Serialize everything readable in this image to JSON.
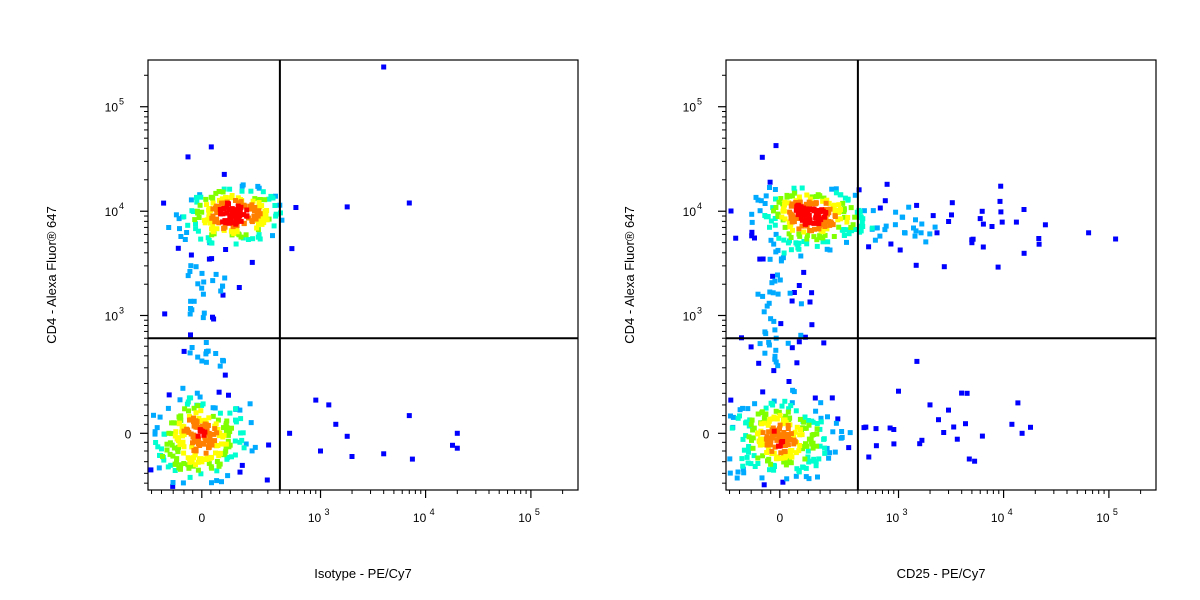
{
  "chart_data": [
    {
      "type": "scatter",
      "xlabel": "Isotype - PE/Cy7",
      "ylabel": "CD4 - Alexa Fluor® 647",
      "x_scale": "biexponential",
      "y_scale": "biexponential",
      "x_ticks": [
        {
          "value": 0,
          "base": "0",
          "exp": ""
        },
        {
          "value": 1000,
          "base": "10",
          "exp": "3"
        },
        {
          "value": 10000,
          "base": "10",
          "exp": "4"
        },
        {
          "value": 100000,
          "base": "10",
          "exp": "5"
        }
      ],
      "y_ticks": [
        {
          "value": 0,
          "base": "0",
          "exp": ""
        },
        {
          "value": 1000,
          "base": "10",
          "exp": "3"
        },
        {
          "value": 10000,
          "base": "10",
          "exp": "4"
        },
        {
          "value": 100000,
          "base": "10",
          "exp": "5"
        }
      ],
      "quadrant_gate": {
        "x": 400,
        "y": 600
      },
      "populations": [
        {
          "name": "CD4-",
          "x_center": -10,
          "y_center": -20,
          "count": 260,
          "x_spread": 0.55,
          "y_spread": 0.45
        },
        {
          "name": "CD4+",
          "x_center": 120,
          "y_center": 9000,
          "count": 230,
          "x_spread": 0.55,
          "y_spread": 0.28
        },
        {
          "name": "stem",
          "x_center": 0,
          "y_center": 900,
          "count": 80,
          "x_spread": 0.35,
          "y_spread": 1.6
        }
      ],
      "outliers": [
        [
          1800,
          11000
        ],
        [
          7000,
          12000
        ],
        [
          4000,
          240000
        ],
        [
          280,
          10000
        ],
        [
          900,
          120
        ],
        [
          1200,
          100
        ],
        [
          1400,
          30
        ],
        [
          1800,
          -10
        ],
        [
          1000,
          -60
        ],
        [
          2000,
          -80
        ],
        [
          4000,
          -70
        ],
        [
          7000,
          60
        ],
        [
          7500,
          -90
        ],
        [
          18000,
          -40
        ],
        [
          20000,
          0
        ],
        [
          20000,
          -50
        ],
        [
          500,
          0
        ]
      ],
      "colors": [
        "#0000ff",
        "#00aaff",
        "#00ffd0",
        "#7fff00",
        "#ffff00",
        "#ff8000",
        "#ff0000"
      ]
    },
    {
      "type": "scatter",
      "xlabel": "CD25 - PE/Cy7",
      "ylabel": "CD4 - Alexa Fluor® 647",
      "x_scale": "biexponential",
      "y_scale": "biexponential",
      "x_ticks": [
        {
          "value": 0,
          "base": "0",
          "exp": ""
        },
        {
          "value": 1000,
          "base": "10",
          "exp": "3"
        },
        {
          "value": 10000,
          "base": "10",
          "exp": "4"
        },
        {
          "value": 100000,
          "base": "10",
          "exp": "5"
        }
      ],
      "y_ticks": [
        {
          "value": 0,
          "base": "0",
          "exp": ""
        },
        {
          "value": 1000,
          "base": "10",
          "exp": "3"
        },
        {
          "value": 10000,
          "base": "10",
          "exp": "4"
        },
        {
          "value": 100000,
          "base": "10",
          "exp": "5"
        }
      ],
      "quadrant_gate": {
        "x": 400,
        "y": 600
      },
      "populations": [
        {
          "name": "CD4-",
          "x_center": -10,
          "y_center": -20,
          "count": 280,
          "x_spread": 0.6,
          "y_spread": 0.45
        },
        {
          "name": "CD4+",
          "x_center": 120,
          "y_center": 9000,
          "count": 260,
          "x_spread": 0.6,
          "y_spread": 0.28
        },
        {
          "name": "stem",
          "x_center": 0,
          "y_center": 900,
          "count": 90,
          "x_spread": 0.35,
          "y_spread": 1.6
        },
        {
          "name": "CD25+CD4+",
          "x_center": 1500,
          "y_center": 7000,
          "count": 70,
          "x_spread": 1.6,
          "y_spread": 0.35
        },
        {
          "name": "CD25+CD4-",
          "x_center": 1000,
          "y_center": -20,
          "count": 30,
          "x_spread": 1.6,
          "y_spread": 0.35
        }
      ],
      "outliers": [
        [
          1500,
          350
        ],
        [
          1000,
          160
        ],
        [
          2000,
          100
        ],
        [
          3000,
          80
        ],
        [
          4500,
          150
        ],
        [
          12000,
          30
        ],
        [
          15000,
          0
        ],
        [
          18000,
          20
        ],
        [
          6000,
          8500
        ],
        [
          5000,
          5000
        ]
      ],
      "colors": [
        "#0000ff",
        "#00aaff",
        "#00ffd0",
        "#7fff00",
        "#ffff00",
        "#ff8000",
        "#ff0000"
      ]
    }
  ]
}
